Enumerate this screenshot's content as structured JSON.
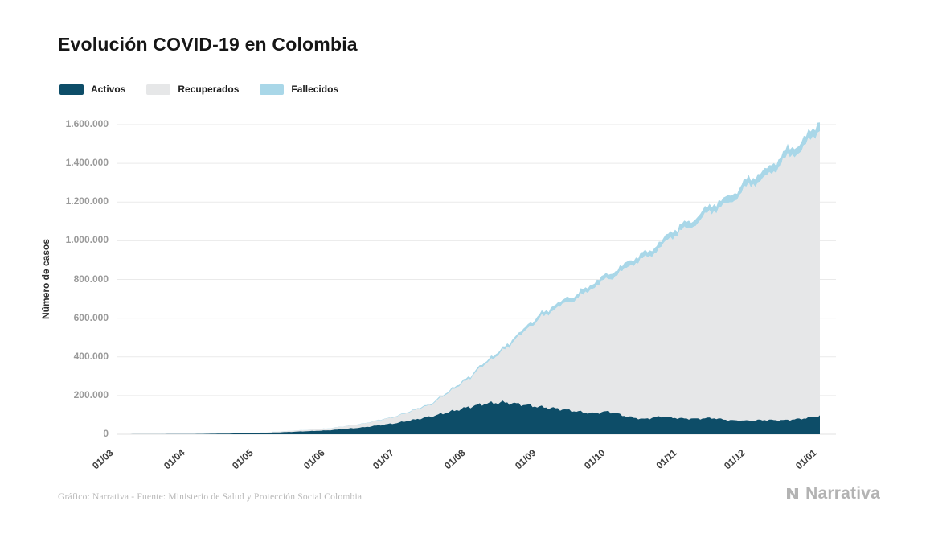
{
  "page": {
    "title": "Evolución COVID-19 en Colombia",
    "footer_source": "Gráfico: Narrativa - Fuente: Ministerio de Salud y Protección Social Colombia",
    "brand": "Narrativa"
  },
  "chart_data": {
    "type": "area",
    "title": "Evolución COVID-19 en Colombia",
    "xlabel": "",
    "ylabel": "Número de casos",
    "ylim": [
      0,
      1600000
    ],
    "grid": true,
    "legend_position": "top-left",
    "x_ticks": [
      {
        "day": 0,
        "label": "01/03"
      },
      {
        "day": 31,
        "label": "01/04"
      },
      {
        "day": 61,
        "label": "01/05"
      },
      {
        "day": 92,
        "label": "01/06"
      },
      {
        "day": 122,
        "label": "01/07"
      },
      {
        "day": 153,
        "label": "01/08"
      },
      {
        "day": 184,
        "label": "01/09"
      },
      {
        "day": 214,
        "label": "01/10"
      },
      {
        "day": 245,
        "label": "01/11"
      },
      {
        "day": 275,
        "label": "01/12"
      },
      {
        "day": 306,
        "label": "01/01"
      }
    ],
    "y_ticks": [
      {
        "value": 0,
        "label": "0"
      },
      {
        "value": 200000,
        "label": "200.000"
      },
      {
        "value": 400000,
        "label": "400.000"
      },
      {
        "value": 600000,
        "label": "600.000"
      },
      {
        "value": 800000,
        "label": "800.000"
      },
      {
        "value": 1000000,
        "label": "1.000.000"
      },
      {
        "value": 1200000,
        "label": "1.200.000"
      },
      {
        "value": 1400000,
        "label": "1.400.000"
      },
      {
        "value": 1600000,
        "label": "1.600.000"
      }
    ],
    "sample_days": [
      0,
      31,
      61,
      92,
      107,
      122,
      137,
      153,
      160,
      168,
      176,
      184,
      192,
      199,
      207,
      214,
      222,
      229,
      237,
      245,
      252,
      259,
      267,
      275,
      282,
      290,
      298,
      306
    ],
    "series": [
      {
        "name": "Activos",
        "color": "#0d4d68",
        "values": [
          0,
          900,
          5300,
          20000,
          35000,
          58000,
          92000,
          140000,
          158000,
          165000,
          155000,
          142000,
          132000,
          120000,
          108000,
          118000,
          92000,
          78000,
          92000,
          82000,
          80000,
          84000,
          72000,
          70000,
          74000,
          72000,
          80000,
          95000
        ]
      },
      {
        "name": "Recuperados",
        "color": "#e6e7e8",
        "values": [
          0,
          80,
          1400,
          9000,
          18200,
          33700,
          62400,
          145000,
          200000,
          265500,
          358000,
          458000,
          521300,
          577000,
          642600,
          686000,
          766000,
          824000,
          878500,
          962000,
          1012500,
          1062000,
          1132200,
          1203000,
          1257500,
          1328000,
          1398000,
          1481000
        ]
      },
      {
        "name": "Fallecidos",
        "color": "#a9d7e8",
        "values": [
          0,
          20,
          300,
          1000,
          1800,
          3300,
          5600,
          10000,
          12000,
          14500,
          17000,
          20000,
          21700,
          23000,
          24400,
          26000,
          27000,
          28000,
          29500,
          31000,
          32500,
          34000,
          35800,
          37000,
          38500,
          40000,
          42000,
          44000
        ]
      }
    ]
  }
}
